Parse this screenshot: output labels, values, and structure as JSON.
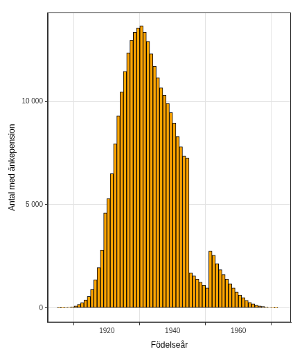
{
  "chart_data": {
    "type": "histogram",
    "xlabel": "Födelseår",
    "ylabel": "Antal med änkepension",
    "bins": [
      1905,
      1906,
      1907,
      1908,
      1909,
      1910,
      1911,
      1912,
      1913,
      1914,
      1915,
      1916,
      1917,
      1918,
      1919,
      1920,
      1921,
      1922,
      1923,
      1924,
      1925,
      1926,
      1927,
      1928,
      1929,
      1930,
      1931,
      1932,
      1933,
      1934,
      1935,
      1936,
      1937,
      1938,
      1939,
      1940,
      1941,
      1942,
      1943,
      1944,
      1945,
      1946,
      1947,
      1948,
      1949,
      1950,
      1951,
      1952,
      1953,
      1954,
      1955,
      1956,
      1957,
      1958,
      1959,
      1960,
      1961,
      1962,
      1963,
      1964,
      1965,
      1966,
      1967,
      1968,
      1969,
      1970,
      1971,
      1972,
      1973
    ],
    "counts": [
      2,
      5,
      15,
      30,
      60,
      100,
      170,
      250,
      380,
      550,
      900,
      1370,
      1950,
      2800,
      4600,
      5300,
      6500,
      7950,
      9300,
      10450,
      11450,
      12350,
      12950,
      13350,
      13550,
      13650,
      13350,
      12900,
      12300,
      11700,
      11150,
      10650,
      10300,
      9900,
      9450,
      8950,
      8300,
      7800,
      7350,
      7250,
      1700,
      1550,
      1400,
      1250,
      1100,
      970,
      2750,
      2550,
      2150,
      1850,
      1620,
      1400,
      1170,
      970,
      770,
      630,
      500,
      370,
      270,
      200,
      130,
      100,
      70,
      40,
      20,
      10,
      5,
      0
    ],
    "color": "#FFA500",
    "xlim": [
      1902,
      1976
    ],
    "xticks": [
      1920,
      1940,
      1960
    ],
    "ylim": [
      -700,
      14300
    ],
    "yticks": [
      0,
      {
        "value": 5000,
        "label": "5 000"
      },
      {
        "value": 10000,
        "label": "10 000"
      }
    ],
    "grid": true
  }
}
